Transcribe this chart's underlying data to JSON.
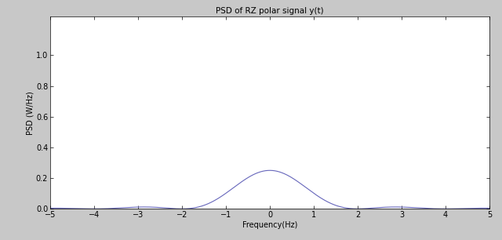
{
  "title": "PSD of RZ polar signal y(t)",
  "xlabel": "Frequency(Hz)",
  "ylabel": "PSD (W/Hz)",
  "xlim": [
    -5,
    5
  ],
  "ylim": [
    0,
    1.25
  ],
  "yticks": [
    0,
    0.2,
    0.4,
    0.6,
    0.8,
    1.0
  ],
  "xticks": [
    -5,
    -4,
    -3,
    -2,
    -1,
    0,
    1,
    2,
    3,
    4,
    5
  ],
  "line_color": "#6666bb",
  "background_color": "#c8c8c8",
  "axes_background": "#ffffff",
  "title_fontsize": 7.5,
  "label_fontsize": 7,
  "tick_fontsize": 7
}
